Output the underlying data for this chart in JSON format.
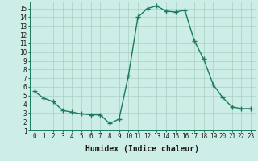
{
  "x": [
    0,
    1,
    2,
    3,
    4,
    5,
    6,
    7,
    8,
    9,
    10,
    11,
    12,
    13,
    14,
    15,
    16,
    17,
    18,
    19,
    20,
    21,
    22,
    23
  ],
  "y": [
    5.5,
    4.7,
    4.3,
    3.3,
    3.1,
    2.9,
    2.8,
    2.8,
    1.8,
    2.3,
    7.3,
    14.0,
    15.0,
    15.3,
    14.7,
    14.6,
    14.8,
    11.3,
    9.2,
    6.3,
    4.8,
    3.7,
    3.5,
    3.5
  ],
  "line_color": "#1a7a5e",
  "marker": "+",
  "marker_size": 4.0,
  "bg_color": "#cdeee6",
  "grid_color": "#aacfc4",
  "xlabel": "Humidex (Indice chaleur)",
  "xlabel_fontsize": 7,
  "xlim": [
    -0.5,
    23.5
  ],
  "ylim": [
    1,
    15.8
  ],
  "xtick_labels": [
    "0",
    "1",
    "2",
    "3",
    "4",
    "5",
    "6",
    "7",
    "8",
    "9",
    "10",
    "11",
    "12",
    "13",
    "14",
    "15",
    "16",
    "17",
    "18",
    "19",
    "20",
    "21",
    "22",
    "23"
  ],
  "ytick_values": [
    1,
    2,
    3,
    4,
    5,
    6,
    7,
    8,
    9,
    10,
    11,
    12,
    13,
    14,
    15
  ],
  "tick_fontsize": 5.5,
  "line_width": 1.0
}
